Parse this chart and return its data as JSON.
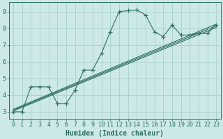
{
  "title": "",
  "xlabel": "Humidex (Indice chaleur)",
  "bg_color": "#cce8e8",
  "line_color": "#2d6e65",
  "grid_color": "#aad0d0",
  "xlim": [
    -0.5,
    23.5
  ],
  "ylim": [
    2.6,
    9.55
  ],
  "xticks": [
    0,
    1,
    2,
    3,
    4,
    5,
    6,
    7,
    8,
    9,
    10,
    11,
    12,
    13,
    14,
    15,
    16,
    17,
    18,
    19,
    20,
    21,
    22,
    23
  ],
  "yticks": [
    3,
    4,
    5,
    6,
    7,
    8,
    9
  ],
  "curve_x": [
    0,
    1,
    2,
    3,
    4,
    5,
    6,
    7,
    8,
    9,
    10,
    11,
    12,
    13,
    14,
    15,
    16,
    17,
    18,
    19,
    20,
    21,
    22,
    23
  ],
  "curve_y": [
    3.0,
    3.0,
    4.5,
    4.5,
    4.5,
    3.5,
    3.5,
    4.3,
    5.5,
    5.5,
    6.5,
    7.8,
    9.0,
    9.05,
    9.1,
    8.8,
    7.8,
    7.5,
    8.2,
    7.6,
    7.6,
    7.7,
    7.7,
    8.2
  ],
  "line1_x": [
    0,
    23
  ],
  "line1_y": [
    3.05,
    8.05
  ],
  "line2_x": [
    0,
    23
  ],
  "line2_y": [
    3.1,
    8.15
  ],
  "line3_x": [
    0,
    23
  ],
  "line3_y": [
    3.15,
    8.25
  ],
  "font_size_xlabel": 7,
  "font_size_ticks": 6,
  "marker_size": 4,
  "line_width": 0.8
}
